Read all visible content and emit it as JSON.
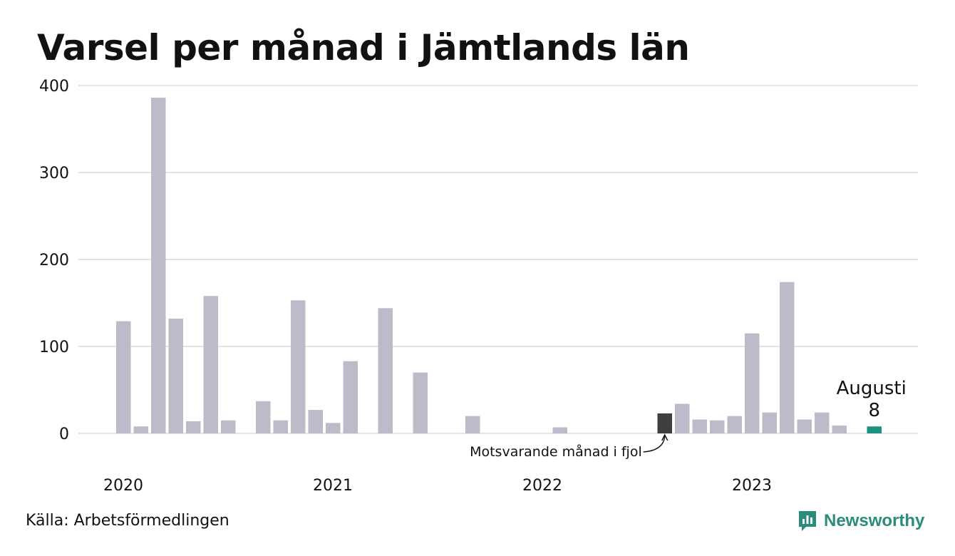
{
  "title": "Varsel per månad i Jämtlands län",
  "source": "Källa: Arbetsförmedlingen",
  "brand": {
    "name": "Newsworthy",
    "icon": "newsworthy-logo-icon",
    "color": "#2a8c7a"
  },
  "colors": {
    "bar": "#bcbbc9",
    "previous_year": "#3f3f3f",
    "current": "#1e9180",
    "grid": "#e3e3e3"
  },
  "chart_data": {
    "type": "bar",
    "title": "Varsel per månad i Jämtlands län",
    "xlabel": "",
    "ylabel": "",
    "ylim": [
      0,
      400
    ],
    "yticks": [
      "0",
      "100",
      "200",
      "300",
      "400"
    ],
    "year_labels": [
      "2020",
      "2021",
      "2022",
      "2023"
    ],
    "categories": [
      "2020-01",
      "2020-02",
      "2020-03",
      "2020-04",
      "2020-05",
      "2020-06",
      "2020-07",
      "2020-08",
      "2020-09",
      "2020-10",
      "2020-11",
      "2020-12",
      "2021-01",
      "2021-02",
      "2021-03",
      "2021-04",
      "2021-05",
      "2021-06",
      "2021-07",
      "2021-08",
      "2021-09",
      "2021-10",
      "2021-11",
      "2021-12",
      "2022-01",
      "2022-02",
      "2022-03",
      "2022-04",
      "2022-05",
      "2022-06",
      "2022-07",
      "2022-08",
      "2022-09",
      "2022-10",
      "2022-11",
      "2022-12",
      "2023-01",
      "2023-02",
      "2023-03",
      "2023-04",
      "2023-05",
      "2023-06",
      "2023-07",
      "2023-08"
    ],
    "values": [
      129,
      8,
      386,
      132,
      14,
      158,
      15,
      0,
      37,
      15,
      153,
      27,
      12,
      83,
      0,
      144,
      0,
      70,
      0,
      0,
      20,
      0,
      0,
      0,
      0,
      7,
      0,
      0,
      0,
      0,
      0,
      23,
      34,
      16,
      15,
      20,
      115,
      24,
      174,
      16,
      24,
      9,
      0,
      8
    ],
    "highlight_previous_index": 31,
    "highlight_current_index": 43,
    "annotations": {
      "previous": "Motsvarande månad i fjol",
      "current_month": "Augusti",
      "current_value": "8"
    },
    "grid": true,
    "legend": "none"
  }
}
